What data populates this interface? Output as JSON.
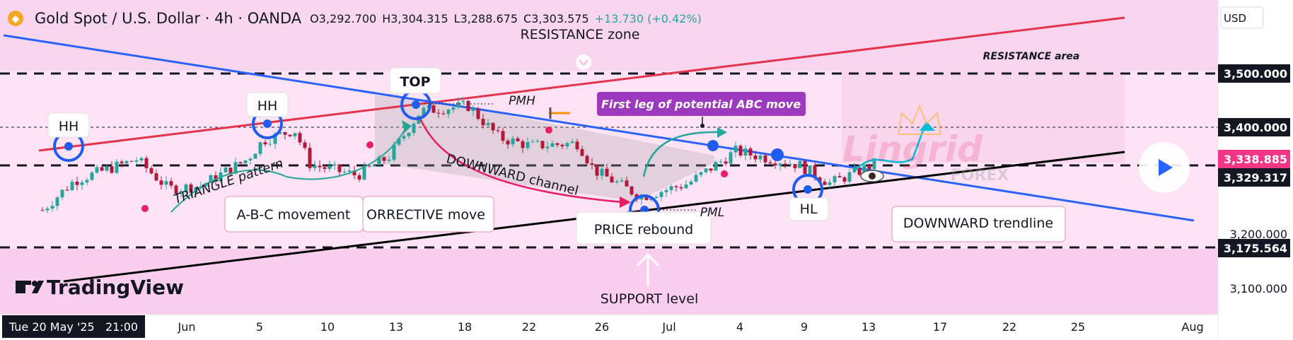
{
  "header": {
    "symbol": "Gold Spot / U.S. Dollar · 4h · OANDA",
    "open": "O3,292.700",
    "high": "H3,304.315",
    "low": "L3,288.675",
    "close": "C3,303.575",
    "change": "+13.730 (+0.42%)",
    "currency": "USD"
  },
  "colors": {
    "up": "#26a69a",
    "down": "#b2183a",
    "resistance_line": "#e5334b",
    "downtrend_line": "#2962ff",
    "support_line": "#000000",
    "pink_bg": "#f9d6ef",
    "label_purple": "#9c39bf",
    "marker_blue": "#1e5cf0",
    "dot_pink": "#e91e63"
  },
  "price_axis": {
    "ticks": [
      "3,500.000",
      "3,400.000",
      "3,329.317",
      "3,200.000",
      "3,175.564",
      "3,100.000"
    ],
    "current_price": "3,338.885"
  },
  "time_axis": {
    "cursor_label": "Tue 20 May '25   21:00",
    "ticks": [
      "Jun",
      "5",
      "10",
      "13",
      "18",
      "22",
      "26",
      "Jul",
      "4",
      "9",
      "13",
      "17",
      "22",
      "25",
      "Aug"
    ]
  },
  "annotations": {
    "resistance_zone": "RESISTANCE zone",
    "resistance_area": "RESISTANCE area",
    "top": "TOP",
    "pmh": "PMH",
    "pml": "PML",
    "hh1": "HH",
    "hh2": "HH",
    "hl": "HL",
    "triangle_pattern": "TRIANGLE pattern",
    "downward_channel": "DOWNWARD channel",
    "abc_movement": "A-B-C movement",
    "corrective_move": "ORRECTIVE move",
    "price_rebound": "PRICE rebound",
    "first_leg": "First leg of potential ABC move",
    "downward_trendline": "DOWNWARD trendline",
    "support_level": "SUPPORT level",
    "watermark": "TradingView",
    "lingrid": "Lingrid",
    "forex": "FOREX"
  },
  "chart_data": {
    "type": "candlestick",
    "instrument": "Gold Spot / U.S. Dollar",
    "timeframe": "4h",
    "ohlc_last": {
      "open": 3292.7,
      "high": 3304.315,
      "low": 3288.675,
      "close": 3303.575,
      "change": 13.73,
      "change_pct": 0.42
    },
    "levels": {
      "resistance": 3500,
      "support": 3175.564,
      "mid_level": 3400,
      "current_price": 3338.885,
      "price_line": 3329.317
    },
    "close_path": [
      [
        "2025-05-20",
        3245
      ],
      [
        "2025-05-22",
        3300
      ],
      [
        "2025-05-26",
        3340
      ],
      [
        "2025-05-28",
        3285
      ],
      [
        "2025-05-30",
        3290
      ],
      [
        "2025-06-02",
        3340
      ],
      [
        "2025-06-03",
        3375
      ],
      [
        "2025-06-05",
        3395
      ],
      [
        "2025-06-06",
        3330
      ],
      [
        "2025-06-09",
        3310
      ],
      [
        "2025-06-11",
        3345
      ],
      [
        "2025-06-13",
        3430
      ],
      [
        "2025-06-16",
        3440
      ],
      [
        "2025-06-18",
        3380
      ],
      [
        "2025-06-20",
        3365
      ],
      [
        "2025-06-23",
        3370
      ],
      [
        "2025-06-24",
        3320
      ],
      [
        "2025-06-27",
        3270
      ],
      [
        "2025-06-30",
        3295
      ],
      [
        "2025-07-03",
        3355
      ],
      [
        "2025-07-07",
        3330
      ],
      [
        "2025-07-09",
        3295
      ],
      [
        "2025-07-11",
        3320
      ],
      [
        "2025-07-12",
        3335
      ]
    ]
  }
}
